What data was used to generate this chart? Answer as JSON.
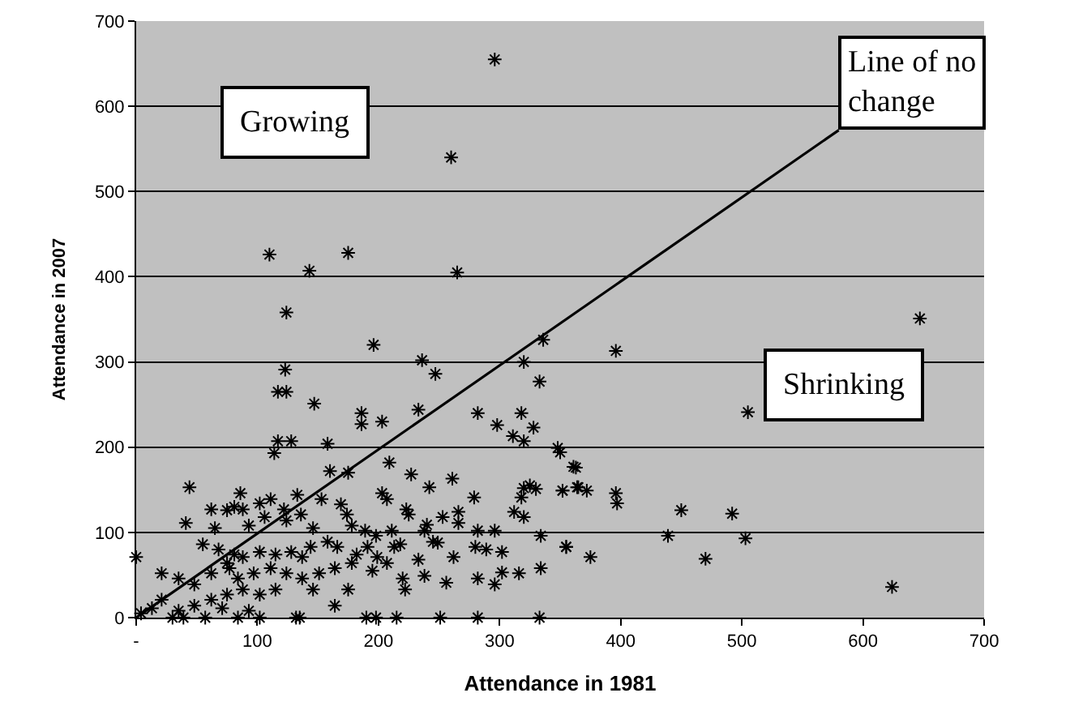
{
  "chart_data": {
    "type": "scatter",
    "xlabel": "Attendance in 1981",
    "ylabel": "Attendance in 2007",
    "xlim": [
      0,
      700
    ],
    "ylim": [
      0,
      700
    ],
    "xticks": [
      {
        "value": 0,
        "label": "-"
      },
      100,
      200,
      300,
      400,
      500,
      600,
      700
    ],
    "yticks": [
      0,
      100,
      200,
      300,
      400,
      500,
      600,
      700
    ],
    "grid": "y",
    "annotations": [
      "Growing",
      "Shrinking",
      {
        "text": "Line of no change",
        "x": 580,
        "y": 572
      }
    ],
    "series": [
      {
        "color": "#000000",
        "marker": "cross",
        "x": [
          296,
          260,
          110,
          143,
          175,
          265,
          124,
          123,
          196,
          236,
          247,
          320,
          336,
          333,
          117,
          124,
          147,
          233,
          186,
          186,
          203,
          282,
          298,
          318,
          311,
          328,
          320,
          117,
          128,
          114,
          158,
          160,
          175,
          209,
          227,
          242,
          261,
          279,
          348,
          350,
          361,
          352,
          364,
          320,
          325,
          330,
          318,
          312,
          320,
          334,
          334,
          355,
          316,
          333,
          44,
          41,
          86,
          203,
          207,
          223,
          225,
          253,
          266,
          266,
          240,
          238,
          211,
          189,
          198,
          282,
          296,
          245,
          249,
          280,
          289,
          302,
          262,
          233,
          238,
          220,
          207,
          256,
          282,
          296,
          302,
          222,
          190,
          198,
          215,
          251,
          282,
          132,
          135,
          0,
          62,
          65,
          75,
          81,
          88,
          102,
          111,
          122,
          133,
          136,
          153,
          169,
          174,
          146,
          158,
          166,
          178,
          144,
          137,
          124,
          106,
          93,
          55,
          21,
          35,
          48,
          62,
          75,
          88,
          102,
          115,
          128,
          84,
          97,
          111,
          124,
          137,
          151,
          164,
          178,
          175,
          164,
          146,
          115,
          102,
          88,
          75,
          62,
          48,
          35,
          21,
          13,
          4,
          84,
          30,
          39,
          57,
          102,
          71,
          93,
          77,
          81,
          68,
          213,
          191,
          199,
          182,
          195,
          218,
          647,
          396,
          505,
          363,
          352,
          365,
          372,
          396,
          397,
          450,
          492,
          439,
          503,
          355,
          375,
          470,
          624
        ],
        "values": [
          655,
          540,
          426,
          407,
          428,
          405,
          358,
          291,
          320,
          302,
          286,
          300,
          326,
          277,
          265,
          265,
          251,
          244,
          240,
          227,
          230,
          240,
          226,
          240,
          213,
          223,
          207,
          207,
          207,
          193,
          204,
          172,
          170,
          182,
          168,
          153,
          163,
          141,
          199,
          194,
          177,
          149,
          153,
          152,
          155,
          151,
          141,
          124,
          118,
          96,
          58,
          83,
          52,
          0,
          153,
          111,
          146,
          146,
          139,
          127,
          121,
          118,
          124,
          111,
          109,
          102,
          102,
          102,
          96,
          102,
          102,
          89,
          88,
          83,
          80,
          77,
          71,
          68,
          49,
          46,
          64,
          41,
          46,
          39,
          53,
          33,
          0,
          0,
          0,
          0,
          0,
          0,
          0,
          71,
          127,
          105,
          126,
          130,
          127,
          134,
          139,
          127,
          144,
          121,
          139,
          133,
          121,
          105,
          89,
          83,
          108,
          83,
          71,
          114,
          118,
          108,
          86,
          52,
          46,
          39,
          52,
          64,
          71,
          77,
          74,
          77,
          46,
          52,
          58,
          52,
          46,
          52,
          58,
          64,
          33,
          14,
          33,
          33,
          27,
          33,
          27,
          21,
          14,
          8,
          21,
          11,
          5,
          0,
          0,
          0,
          0,
          0,
          11,
          8,
          58,
          74,
          80,
          83,
          83,
          71,
          74,
          55,
          86,
          351,
          313,
          241,
          176,
          149,
          153,
          149,
          146,
          134,
          126,
          122,
          96,
          93,
          83,
          71,
          69,
          36
        ]
      },
      {
        "type": "line",
        "marker": "none",
        "color": "#000000",
        "x": [
          0,
          580
        ],
        "values": [
          0,
          572
        ]
      }
    ]
  }
}
